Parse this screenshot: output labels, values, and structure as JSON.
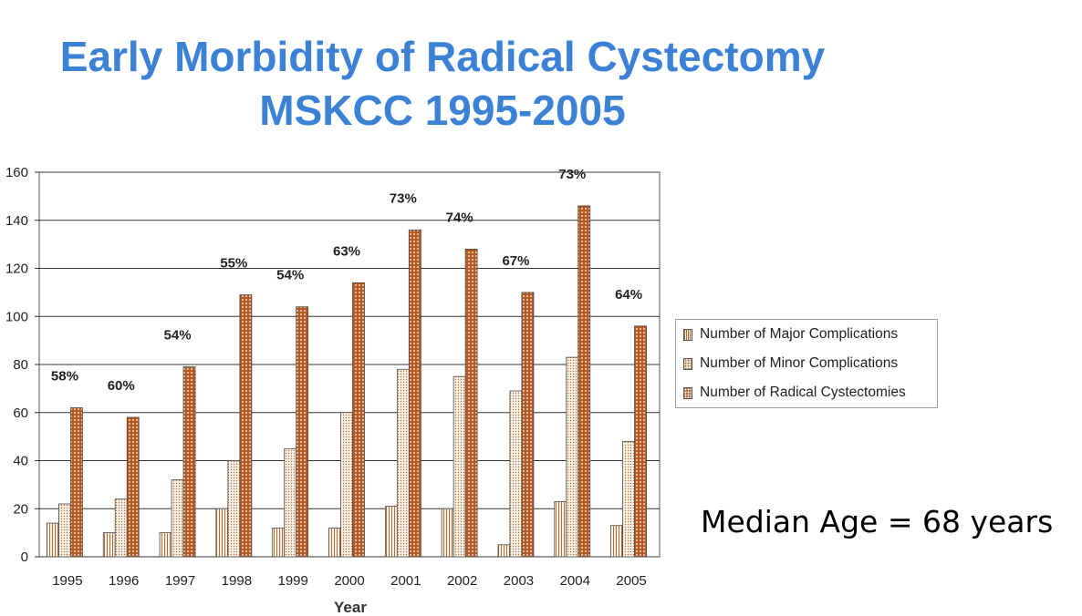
{
  "slide": {
    "title_line1": "Early Morbidity of Radical Cystectomy",
    "title_line2": "MSKCC 1995-2005",
    "note": "Median Age = 68 years"
  },
  "chart_data": {
    "type": "bar",
    "categories": [
      "1995",
      "1996",
      "1997",
      "1998",
      "1999",
      "2000",
      "2001",
      "2002",
      "2003",
      "2004",
      "2005"
    ],
    "series": [
      {
        "name": "Number of Major Complications",
        "values": [
          14,
          10,
          10,
          20,
          12,
          12,
          21,
          20,
          5,
          23,
          13
        ]
      },
      {
        "name": "Number of Minor Complications",
        "values": [
          22,
          24,
          32,
          40,
          45,
          60,
          78,
          75,
          69,
          83,
          48
        ]
      },
      {
        "name": "Number of Radical Cystectomies",
        "values": [
          62,
          58,
          79,
          109,
          104,
          114,
          136,
          128,
          110,
          146,
          96
        ]
      }
    ],
    "annotations": [
      "58%",
      "60%",
      "54%",
      "55%",
      "54%",
      "63%",
      "73%",
      "74%",
      "67%",
      "73%",
      "64%"
    ],
    "xlabel": "Year",
    "ylabel": "",
    "ylim": [
      0,
      160
    ],
    "yticks": [
      0,
      20,
      40,
      60,
      80,
      100,
      120,
      140,
      160
    ],
    "grid": true,
    "legend_position": "right",
    "colors": {
      "major": "#b0703a",
      "minor": "#b0703a",
      "radical": "#b55a21",
      "grid": "#333333"
    }
  }
}
